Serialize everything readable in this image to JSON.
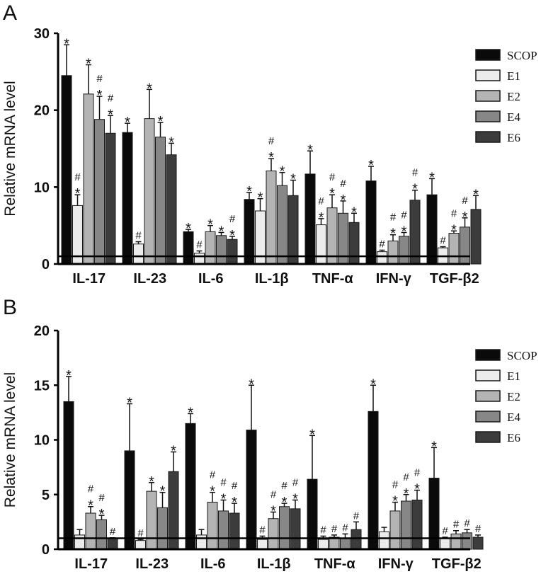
{
  "chart_data": [
    {
      "panel": "A",
      "type": "bar",
      "ylabel": "Relative mRNA level",
      "ylim": [
        0,
        30
      ],
      "yticks": [
        0,
        10,
        20,
        30
      ],
      "reference_line": 1,
      "categories": [
        "IL-17",
        "IL-23",
        "IL-6",
        "IL-1β",
        "TNF-α",
        "IFN-γ",
        "TGF-β2"
      ],
      "series": [
        {
          "name": "SCOP",
          "color": "#0a0a0a",
          "values": [
            24.5,
            17.1,
            4.2,
            8.4,
            11.7,
            10.8,
            9.0
          ],
          "errors": [
            4.0,
            1.2,
            0.3,
            0.9,
            3.0,
            1.9,
            2.1
          ],
          "marks": [
            "*",
            "*",
            "*",
            "*",
            "*",
            "*",
            "*"
          ]
        },
        {
          "name": "E1",
          "color": "#ececec",
          "values": [
            7.6,
            2.6,
            1.4,
            6.9,
            5.1,
            1.6,
            2.1
          ],
          "errors": [
            1.4,
            0.3,
            0.3,
            1.6,
            0.8,
            0.2,
            0.15
          ],
          "marks": [
            "#*",
            "#",
            "#",
            "*",
            "#*",
            "#",
            "#"
          ]
        },
        {
          "name": "E2",
          "color": "#b4b4b4",
          "values": [
            22.1,
            18.9,
            4.2,
            12.1,
            7.3,
            3.0,
            4.0
          ],
          "errors": [
            3.8,
            3.8,
            0.8,
            1.6,
            1.7,
            0.8,
            0.3
          ],
          "marks": [
            "*",
            "*",
            "*",
            "#*",
            "#*",
            "#*",
            "#*"
          ]
        },
        {
          "name": "E4",
          "color": "#878787",
          "values": [
            18.8,
            16.5,
            3.7,
            10.2,
            6.6,
            3.6,
            4.8
          ],
          "errors": [
            3.0,
            1.9,
            0.4,
            1.7,
            1.6,
            0.5,
            1.2
          ],
          "marks": [
            "#*",
            "*",
            "*",
            "*",
            "#*",
            "#*",
            "#*"
          ]
        },
        {
          "name": "E6",
          "color": "#3c3c3c",
          "values": [
            17.0,
            14.2,
            3.2,
            8.9,
            5.4,
            8.3,
            7.1
          ],
          "errors": [
            2.3,
            1.5,
            0.4,
            2.0,
            1.2,
            1.3,
            1.8
          ],
          "marks": [
            "#*",
            "*",
            "#*",
            "*",
            "*",
            "#*",
            "*"
          ]
        }
      ]
    },
    {
      "panel": "B",
      "type": "bar",
      "ylabel": "Relative mRNA level",
      "ylim": [
        0,
        20
      ],
      "yticks": [
        0,
        5,
        10,
        15,
        20
      ],
      "reference_line": 1,
      "categories": [
        "IL-17",
        "IL-23",
        "IL-6",
        "IL-1β",
        "TNF-α",
        "IFN-γ",
        "TGF-β2"
      ],
      "series": [
        {
          "name": "SCOP",
          "color": "#0a0a0a",
          "values": [
            13.5,
            9.0,
            11.5,
            10.9,
            6.4,
            12.6,
            6.5
          ],
          "errors": [
            2.3,
            4.3,
            0.9,
            4.1,
            4.0,
            2.4,
            2.8
          ],
          "marks": [
            "*",
            "*",
            "*",
            "*",
            "*",
            "*",
            "*"
          ]
        },
        {
          "name": "E1",
          "color": "#ececec",
          "values": [
            1.3,
            0.8,
            1.3,
            0.9,
            0.9,
            1.6,
            1.0
          ],
          "errors": [
            0.5,
            0.1,
            0.5,
            0.3,
            0.3,
            0.4,
            0.1
          ],
          "marks": [
            "",
            "#",
            "",
            "#",
            "#",
            "",
            "#"
          ]
        },
        {
          "name": "E2",
          "color": "#b4b4b4",
          "values": [
            3.3,
            5.3,
            4.3,
            2.8,
            1.1,
            3.5,
            1.4
          ],
          "errors": [
            0.6,
            0.8,
            0.9,
            0.6,
            0.2,
            0.8,
            0.3
          ],
          "marks": [
            "#*",
            "*",
            "#*",
            "#*",
            "#",
            "#*",
            "#"
          ]
        },
        {
          "name": "E4",
          "color": "#878787",
          "values": [
            2.7,
            3.8,
            3.5,
            3.9,
            1.0,
            4.4,
            1.5
          ],
          "errors": [
            0.4,
            1.4,
            1.0,
            0.3,
            0.4,
            0.6,
            0.3
          ],
          "marks": [
            "#*",
            "*",
            "#*",
            "#*",
            "#",
            "#*",
            "#"
          ]
        },
        {
          "name": "E6",
          "color": "#3c3c3c",
          "values": [
            1.0,
            7.1,
            3.3,
            3.7,
            1.8,
            4.5,
            1.1
          ],
          "errors": [
            0.05,
            1.8,
            0.9,
            0.8,
            0.7,
            0.9,
            0.2
          ],
          "marks": [
            "#",
            "*",
            "#*",
            "#*",
            "#",
            "#*",
            "#"
          ]
        }
      ]
    }
  ]
}
